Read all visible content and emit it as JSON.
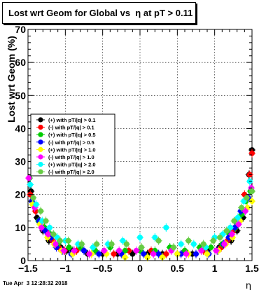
{
  "chart_data": {
    "type": "scatter",
    "title": "Lost wrt Geom for Global vs  η at pT > 0.11",
    "xlabel": "η",
    "ylabel": "Lost wrt Geom (%)",
    "xlim": [
      -1.5,
      1.5
    ],
    "ylim": [
      0,
      70
    ],
    "x_ticks": [
      -1.5,
      -1,
      -0.5,
      0,
      0.5,
      1,
      1.5
    ],
    "x_tick_labels": [
      "−1.5",
      "−1",
      "−0.5",
      "0",
      "0.5",
      "1",
      "1.5"
    ],
    "y_ticks": [
      0,
      10,
      20,
      30,
      40,
      50,
      60,
      70
    ],
    "grid": true,
    "legend_position": "left",
    "series": [
      {
        "name": "(+) with pT/|q| > 0.1",
        "color": "#000000",
        "points": [
          [
            -1.46,
            21
          ],
          [
            -1.38,
            13
          ],
          [
            -1.3,
            9
          ],
          [
            -1.22,
            6
          ],
          [
            -1.14,
            5
          ],
          [
            -1.06,
            4
          ],
          [
            -0.98,
            3
          ],
          [
            -0.9,
            3
          ],
          [
            -0.7,
            2
          ],
          [
            -0.5,
            2
          ],
          [
            -0.3,
            2
          ],
          [
            -0.1,
            2
          ],
          [
            0.1,
            2
          ],
          [
            0.3,
            2
          ],
          [
            0.5,
            2
          ],
          [
            0.7,
            2
          ],
          [
            0.9,
            3
          ],
          [
            1.06,
            4
          ],
          [
            1.22,
            6
          ],
          [
            1.3,
            9
          ],
          [
            1.38,
            13
          ],
          [
            1.46,
            26
          ],
          [
            1.5,
            33.5
          ]
        ]
      },
      {
        "name": "(-) with pT/|q| > 0.1",
        "color": "#ff0000",
        "points": [
          [
            -1.47,
            20
          ],
          [
            -1.4,
            15
          ],
          [
            -1.33,
            11
          ],
          [
            -1.25,
            9
          ],
          [
            -1.17,
            6
          ],
          [
            -1.09,
            4
          ],
          [
            -1.01,
            3
          ],
          [
            -0.85,
            3
          ],
          [
            -0.6,
            3
          ],
          [
            -0.35,
            2
          ],
          [
            -0.15,
            3
          ],
          [
            0.15,
            3
          ],
          [
            0.35,
            2
          ],
          [
            0.6,
            3
          ],
          [
            0.85,
            3
          ],
          [
            1.09,
            4
          ],
          [
            1.17,
            6
          ],
          [
            1.25,
            9
          ],
          [
            1.33,
            12
          ],
          [
            1.4,
            20
          ],
          [
            1.47,
            26
          ],
          [
            1.5,
            32.5
          ]
        ]
      },
      {
        "name": "(+) with pT/|q| > 0.5",
        "color": "#00cc00",
        "points": [
          [
            -1.48,
            25
          ],
          [
            -1.42,
            17
          ],
          [
            -1.36,
            12
          ],
          [
            -1.28,
            10
          ],
          [
            -1.2,
            8
          ],
          [
            -1.1,
            5
          ],
          [
            -0.95,
            4
          ],
          [
            -0.8,
            4
          ],
          [
            -0.6,
            3
          ],
          [
            -0.4,
            4
          ],
          [
            -0.2,
            3
          ],
          [
            0.0,
            3
          ],
          [
            0.2,
            3
          ],
          [
            0.4,
            4
          ],
          [
            0.6,
            3
          ],
          [
            0.8,
            4
          ],
          [
            0.95,
            4
          ],
          [
            1.1,
            5
          ],
          [
            1.2,
            8
          ],
          [
            1.28,
            10
          ],
          [
            1.36,
            14
          ],
          [
            1.42,
            18
          ],
          [
            1.48,
            21
          ]
        ]
      },
      {
        "name": "(-) with pT/|q| > 0.5",
        "color": "#0000ff",
        "points": [
          [
            -1.45,
            18
          ],
          [
            -1.35,
            12
          ],
          [
            -1.27,
            9
          ],
          [
            -1.19,
            7
          ],
          [
            -1.12,
            4
          ],
          [
            -1.04,
            3
          ],
          [
            -0.92,
            2
          ],
          [
            -0.75,
            3
          ],
          [
            -0.55,
            2
          ],
          [
            -0.25,
            2
          ],
          [
            0.05,
            2
          ],
          [
            0.25,
            2
          ],
          [
            0.55,
            2
          ],
          [
            0.75,
            2
          ],
          [
            0.92,
            2
          ],
          [
            1.04,
            3
          ],
          [
            1.12,
            5
          ],
          [
            1.19,
            7
          ],
          [
            1.27,
            10
          ],
          [
            1.35,
            15
          ],
          [
            1.45,
            19
          ]
        ]
      },
      {
        "name": "(+) with pT/|q| > 1.0",
        "color": "#ffff00",
        "points": [
          [
            -1.44,
            17
          ],
          [
            -1.34,
            11
          ],
          [
            -1.24,
            7
          ],
          [
            -1.15,
            5
          ],
          [
            -1.05,
            3
          ],
          [
            -0.9,
            2
          ],
          [
            -0.65,
            2
          ],
          [
            -0.45,
            2
          ],
          [
            -0.2,
            1
          ],
          [
            0.1,
            1
          ],
          [
            0.3,
            1
          ],
          [
            0.5,
            2
          ],
          [
            0.65,
            2
          ],
          [
            0.9,
            2
          ],
          [
            1.05,
            3
          ],
          [
            1.15,
            5
          ],
          [
            1.24,
            7
          ],
          [
            1.34,
            12
          ],
          [
            1.44,
            16
          ],
          [
            1.5,
            18
          ]
        ]
      },
      {
        "name": "(-) with pT/|q| > 1.0",
        "color": "#ff00ff",
        "points": [
          [
            -1.49,
            25
          ],
          [
            -1.41,
            16
          ],
          [
            -1.32,
            10
          ],
          [
            -1.23,
            8
          ],
          [
            -1.13,
            5
          ],
          [
            -1.02,
            3
          ],
          [
            -0.88,
            3
          ],
          [
            -0.68,
            2
          ],
          [
            -0.48,
            3
          ],
          [
            -0.28,
            3
          ],
          [
            -0.05,
            3
          ],
          [
            0.18,
            2
          ],
          [
            0.42,
            3
          ],
          [
            0.62,
            2
          ],
          [
            0.82,
            3
          ],
          [
            1.02,
            3
          ],
          [
            1.13,
            5
          ],
          [
            1.23,
            8
          ],
          [
            1.32,
            11
          ],
          [
            1.41,
            15
          ],
          [
            1.49,
            22
          ]
        ]
      },
      {
        "name": "(+) with pT/|q| > 2.0",
        "color": "#00ffff",
        "points": [
          [
            -1.47,
            23
          ],
          [
            -1.39,
            17
          ],
          [
            -1.31,
            12
          ],
          [
            -1.21,
            10
          ],
          [
            -1.11,
            7
          ],
          [
            -1.0,
            6
          ],
          [
            -0.83,
            5
          ],
          [
            -0.63,
            4
          ],
          [
            -0.43,
            5
          ],
          [
            -0.23,
            6
          ],
          [
            0.0,
            7
          ],
          [
            0.2,
            7
          ],
          [
            0.35,
            10
          ],
          [
            0.55,
            5
          ],
          [
            0.72,
            5
          ],
          [
            0.88,
            4
          ],
          [
            1.0,
            7
          ],
          [
            1.11,
            8
          ],
          [
            1.21,
            10
          ],
          [
            1.31,
            13
          ],
          [
            1.39,
            18
          ],
          [
            1.47,
            24
          ]
        ]
      },
      {
        "name": "(-) with pT/|q| > 2.0",
        "color": "#66cc44",
        "points": [
          [
            -1.43,
            19
          ],
          [
            -1.33,
            15
          ],
          [
            -1.26,
            12
          ],
          [
            -1.16,
            8
          ],
          [
            -1.07,
            6
          ],
          [
            -0.96,
            6
          ],
          [
            -0.78,
            5
          ],
          [
            -0.58,
            5
          ],
          [
            -0.38,
            5
          ],
          [
            -0.18,
            5
          ],
          [
            0.02,
            4
          ],
          [
            0.25,
            6
          ],
          [
            0.45,
            4
          ],
          [
            0.65,
            6
          ],
          [
            0.85,
            5
          ],
          [
            0.98,
            6
          ],
          [
            1.07,
            7
          ],
          [
            1.16,
            9
          ],
          [
            1.26,
            12
          ],
          [
            1.36,
            16
          ],
          [
            1.43,
            19
          ],
          [
            1.5,
            21
          ]
        ]
      }
    ]
  },
  "footer": {
    "timestamp": "Tue Apr  3 12:28:32 2018"
  }
}
